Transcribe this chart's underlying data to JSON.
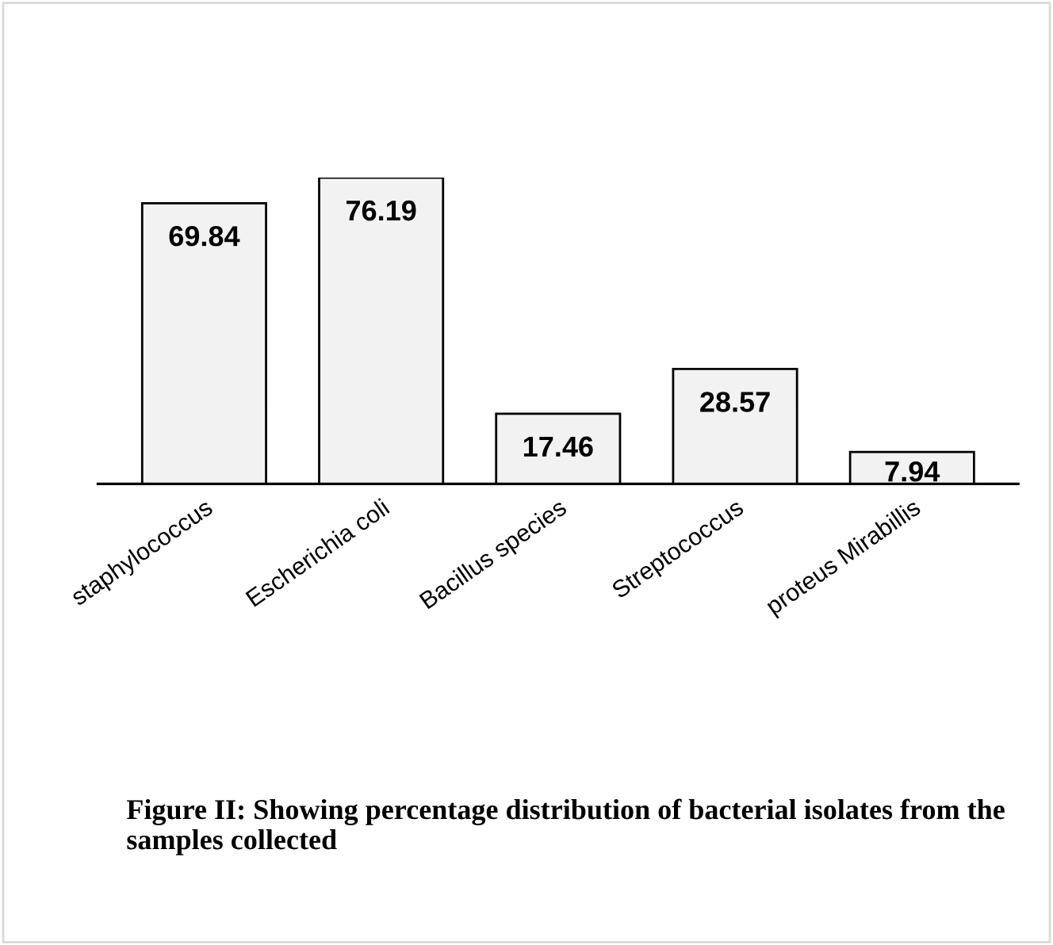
{
  "chart_data": {
    "type": "bar",
    "title": "Figure II: Showing percentage distribution of bacterial isolates from the samples collected",
    "categories": [
      "staphylococcus",
      "Escherichia coli",
      "Bacillus species",
      "Streptococcus",
      "proteus Mirabillis"
    ],
    "values": [
      69.84,
      76.19,
      17.46,
      28.57,
      7.94
    ],
    "color": "#f2f2f2",
    "data_labels": true
  }
}
